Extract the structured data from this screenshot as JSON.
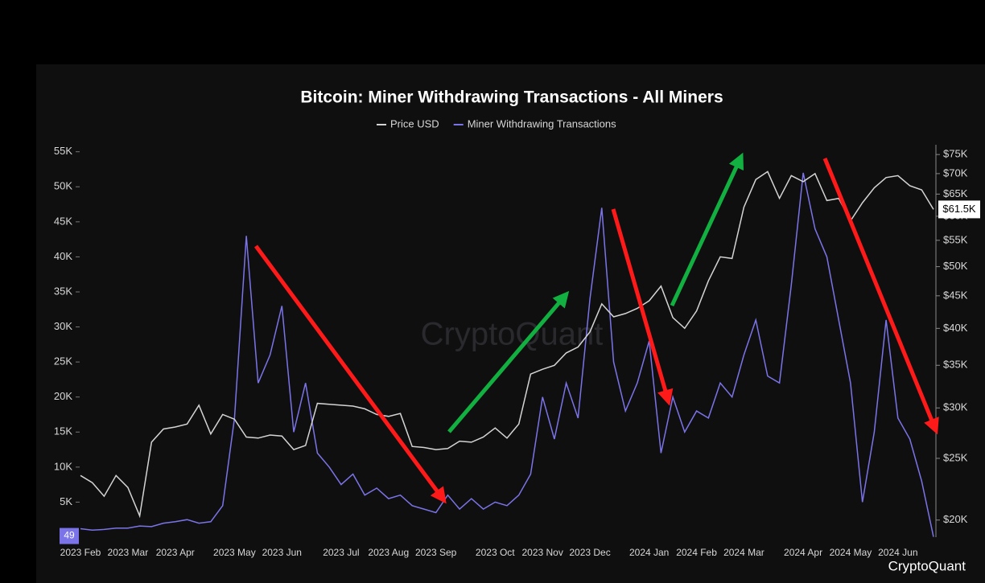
{
  "chart_data": {
    "type": "line",
    "title": "Bitcoin: Miner Withdrawing Transactions - All Miners",
    "watermark": "CryptoQuant",
    "brand": "CryptoQuant",
    "categories": [
      "2023 Feb",
      null,
      null,
      null,
      "2023 Mar",
      null,
      null,
      null,
      "2023 Apr",
      null,
      null,
      null,
      null,
      "2023 May",
      null,
      null,
      null,
      "2023 Jun",
      null,
      null,
      null,
      null,
      "2023 Jul",
      null,
      null,
      null,
      "2023 Aug",
      null,
      null,
      null,
      "2023 Sep",
      null,
      null,
      null,
      null,
      "2023 Oct",
      null,
      null,
      null,
      "2023 Nov",
      null,
      null,
      null,
      "2023 Dec",
      null,
      null,
      null,
      null,
      "2024 Jan",
      null,
      null,
      null,
      "2024 Feb",
      null,
      null,
      null,
      "2024 Mar",
      null,
      null,
      null,
      null,
      "2024 Apr",
      null,
      null,
      null,
      "2024 May",
      null,
      null,
      null,
      "2024 Jun",
      null,
      null,
      null
    ],
    "series": [
      {
        "name": "Price USD",
        "color": "#d4d4d4",
        "axis": "y2",
        "values": [
          23500,
          22900,
          21800,
          23500,
          22500,
          20300,
          26500,
          27800,
          28000,
          28300,
          30300,
          27300,
          29300,
          28800,
          27000,
          26900,
          27200,
          27100,
          25800,
          26200,
          30500,
          30400,
          30300,
          30200,
          29900,
          29300,
          29100,
          29400,
          26100,
          26000,
          25800,
          25900,
          26600,
          26500,
          27000,
          27900,
          26900,
          28300,
          33900,
          34500,
          35000,
          36600,
          37400,
          39500,
          43700,
          41700,
          42200,
          43000,
          44200,
          46600,
          41600,
          40000,
          42600,
          47500,
          51800,
          51500,
          62000,
          68500,
          70500,
          64000,
          69500,
          68000,
          70000,
          63500,
          64000,
          59000,
          63000,
          66500,
          69000,
          69500,
          67000,
          66000,
          61500
        ]
      },
      {
        "name": "Miner Withdrawing Transactions",
        "color": "#7b74e8",
        "axis": "y",
        "values": [
          1200,
          1000,
          1100,
          1300,
          1300,
          1600,
          1500,
          2000,
          2200,
          2500,
          2000,
          2200,
          4500,
          17000,
          43000,
          22000,
          26000,
          33000,
          15000,
          22000,
          12000,
          10000,
          7500,
          9000,
          6000,
          7000,
          5500,
          6000,
          4500,
          4000,
          3500,
          6000,
          4000,
          5500,
          4000,
          5000,
          4500,
          6000,
          9000,
          20000,
          14000,
          22000,
          17000,
          34000,
          47000,
          25000,
          18000,
          22000,
          28000,
          12000,
          20000,
          15000,
          18000,
          17000,
          22000,
          20000,
          26000,
          31000,
          23000,
          22000,
          36000,
          52000,
          44000,
          40000,
          31000,
          22000,
          5000,
          15000,
          31000,
          17000,
          14000,
          8000,
          49
        ]
      }
    ],
    "ylim": [
      0,
      56000
    ],
    "yticks": [
      {
        "value": 5000,
        "label": "5K"
      },
      {
        "value": 10000,
        "label": "10K"
      },
      {
        "value": 15000,
        "label": "15K"
      },
      {
        "value": 20000,
        "label": "20K"
      },
      {
        "value": 25000,
        "label": "25K"
      },
      {
        "value": 30000,
        "label": "30K"
      },
      {
        "value": 35000,
        "label": "35K"
      },
      {
        "value": 40000,
        "label": "40K"
      },
      {
        "value": 45000,
        "label": "45K"
      },
      {
        "value": 50000,
        "label": "50K"
      },
      {
        "value": 55000,
        "label": "55K"
      }
    ],
    "y2lim": [
      18800,
      77700
    ],
    "y2log": true,
    "y2ticks": [
      {
        "value": 20000,
        "label": "$20K"
      },
      {
        "value": 25000,
        "label": "$25K"
      },
      {
        "value": 30000,
        "label": "$30K"
      },
      {
        "value": 35000,
        "label": "$35K"
      },
      {
        "value": 40000,
        "label": "$40K"
      },
      {
        "value": 45000,
        "label": "$45K"
      },
      {
        "value": 50000,
        "label": "$50K"
      },
      {
        "value": 55000,
        "label": "$55K"
      },
      {
        "value": 60000,
        "label": "$60K"
      },
      {
        "value": 65000,
        "label": "$65K"
      },
      {
        "value": 70000,
        "label": "$70K"
      },
      {
        "value": 75000,
        "label": "$75K"
      }
    ],
    "current_marker": {
      "value": 49,
      "label": "49"
    },
    "price_marker": {
      "value": 61500,
      "label": "$61.5K"
    }
  }
}
